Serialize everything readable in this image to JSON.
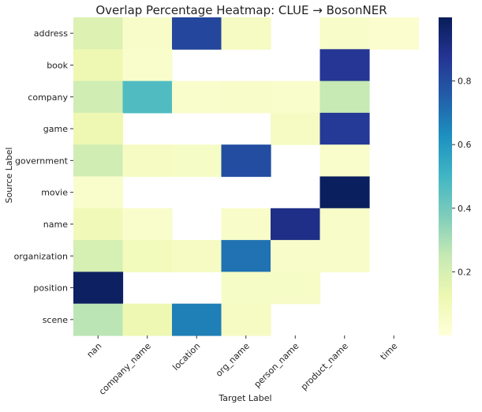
{
  "chart_data": {
    "type": "heatmap",
    "title": "Overlap Percentage Heatmap: CLUE → BosonNER",
    "xlabel": "Target Label",
    "ylabel": "Source Label",
    "x_categories": [
      "nan",
      "company_name",
      "location",
      "org_name",
      "person_name",
      "product_name",
      "time"
    ],
    "y_categories": [
      "address",
      "book",
      "company",
      "game",
      "government",
      "movie",
      "name",
      "organization",
      "position",
      "scene"
    ],
    "values": [
      [
        0.18,
        0.05,
        0.82,
        0.07,
        null,
        0.05,
        0.03
      ],
      [
        0.12,
        0.04,
        null,
        null,
        null,
        0.87,
        null
      ],
      [
        0.22,
        0.47,
        0.04,
        0.05,
        0.04,
        0.25,
        null
      ],
      [
        0.12,
        null,
        null,
        null,
        0.07,
        0.86,
        null
      ],
      [
        0.22,
        0.07,
        0.06,
        0.8,
        null,
        0.04,
        null
      ],
      [
        0.04,
        null,
        null,
        null,
        null,
        0.99,
        null
      ],
      [
        0.1,
        0.04,
        null,
        0.05,
        0.9,
        0.05,
        null
      ],
      [
        0.2,
        0.09,
        0.07,
        0.7,
        0.05,
        0.05,
        null
      ],
      [
        0.98,
        null,
        null,
        0.06,
        0.06,
        null,
        null
      ],
      [
        0.27,
        0.12,
        0.67,
        0.07,
        null,
        null,
        null
      ]
    ],
    "colorbar": {
      "colormap": "YlGnBu",
      "range": [
        0.0,
        1.0
      ],
      "ticks": [
        "0.2",
        "0.4",
        "0.6",
        "0.8"
      ]
    }
  }
}
